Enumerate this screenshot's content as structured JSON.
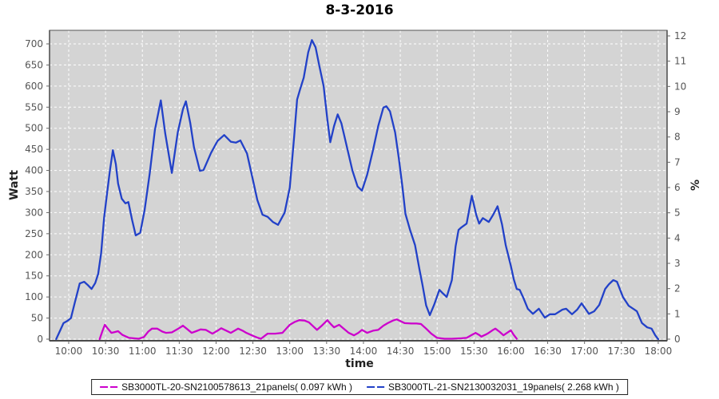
{
  "title": "8-3-2016",
  "axes": {
    "x": {
      "label": "time"
    },
    "left": {
      "label": "Watt"
    },
    "right": {
      "label": "%"
    }
  },
  "legend": {
    "items": [
      {
        "label": "SB3000TL-20-SN2100578613_21panels( 0.097 kWh )",
        "color": "#cc00cc"
      },
      {
        "label": "SB3000TL-21-SN2130032031_19panels( 2.268 kWh )",
        "color": "#2241c8"
      }
    ]
  },
  "colors": {
    "plot_bg": "#d4d4d4",
    "grid": "#ffffff",
    "plot_border": "#6e6e6e",
    "axis_line": "#4a4a4a",
    "tick_mark": "#666666",
    "tick_text": "#555555",
    "axis_title_text": "#222222"
  },
  "chart_data": {
    "type": "line",
    "title": "8-3-2016",
    "xlabel": "time",
    "ylabel_left": "Watt",
    "ylabel_right": "%",
    "grid": true,
    "legend_position": "bottom",
    "x_range_hours": [
      9.74,
      18.12
    ],
    "y_left_range": [
      0,
      700
    ],
    "y_right_range": [
      0,
      12
    ],
    "x_ticks": [
      {
        "v": 10,
        "label": "10:00"
      },
      {
        "v": 10.5,
        "label": "10:30"
      },
      {
        "v": 11,
        "label": "11:00"
      },
      {
        "v": 11.5,
        "label": "11:30"
      },
      {
        "v": 12,
        "label": "12:00"
      },
      {
        "v": 12.5,
        "label": "12:30"
      },
      {
        "v": 13,
        "label": "13:00"
      },
      {
        "v": 13.5,
        "label": "13:30"
      },
      {
        "v": 14,
        "label": "14:00"
      },
      {
        "v": 14.5,
        "label": "14:30"
      },
      {
        "v": 15,
        "label": "15:00"
      },
      {
        "v": 15.5,
        "label": "15:30"
      },
      {
        "v": 16,
        "label": "16:00"
      },
      {
        "v": 16.5,
        "label": "16:30"
      },
      {
        "v": 17,
        "label": "17:00"
      },
      {
        "v": 17.5,
        "label": "17:30"
      },
      {
        "v": 18,
        "label": "18:00"
      }
    ],
    "y_left_ticks": [
      0,
      50,
      100,
      150,
      200,
      250,
      300,
      350,
      400,
      450,
      500,
      550,
      600,
      650,
      700
    ],
    "y_right_ticks": [
      0,
      1,
      2,
      3,
      4,
      5,
      6,
      7,
      8,
      9,
      10,
      11,
      12
    ],
    "series": [
      {
        "name": "SB3000TL-20-SN2100578613_21panels( 0.097 kWh )",
        "color": "#cc00cc",
        "axis": "left",
        "points": [
          [
            10.42,
            0
          ],
          [
            10.46,
            20
          ],
          [
            10.49,
            34
          ],
          [
            10.53,
            25
          ],
          [
            10.58,
            15
          ],
          [
            10.63,
            17
          ],
          [
            10.67,
            19
          ],
          [
            10.73,
            10
          ],
          [
            10.82,
            3
          ],
          [
            10.95,
            1
          ],
          [
            11.02,
            5
          ],
          [
            11.08,
            18
          ],
          [
            11.13,
            25
          ],
          [
            11.2,
            25
          ],
          [
            11.27,
            18
          ],
          [
            11.32,
            15
          ],
          [
            11.4,
            16
          ],
          [
            11.48,
            24
          ],
          [
            11.55,
            32
          ],
          [
            11.6,
            25
          ],
          [
            11.67,
            15
          ],
          [
            11.73,
            19
          ],
          [
            11.79,
            23
          ],
          [
            11.86,
            22
          ],
          [
            11.95,
            13
          ],
          [
            12.02,
            20
          ],
          [
            12.07,
            26
          ],
          [
            12.14,
            20
          ],
          [
            12.2,
            15
          ],
          [
            12.26,
            21
          ],
          [
            12.3,
            25
          ],
          [
            12.36,
            20
          ],
          [
            12.41,
            15
          ],
          [
            12.5,
            8
          ],
          [
            12.57,
            3
          ],
          [
            12.61,
            1
          ],
          [
            12.66,
            8
          ],
          [
            12.7,
            13
          ],
          [
            12.8,
            13
          ],
          [
            12.9,
            15
          ],
          [
            13.0,
            34
          ],
          [
            13.07,
            41
          ],
          [
            13.13,
            45
          ],
          [
            13.2,
            44
          ],
          [
            13.26,
            40
          ],
          [
            13.32,
            30
          ],
          [
            13.37,
            22
          ],
          [
            13.44,
            33
          ],
          [
            13.51,
            45
          ],
          [
            13.56,
            35
          ],
          [
            13.6,
            28
          ],
          [
            13.67,
            34
          ],
          [
            13.73,
            25
          ],
          [
            13.8,
            15
          ],
          [
            13.87,
            9
          ],
          [
            13.93,
            15
          ],
          [
            13.98,
            22
          ],
          [
            14.05,
            15
          ],
          [
            14.13,
            20
          ],
          [
            14.2,
            22
          ],
          [
            14.27,
            32
          ],
          [
            14.33,
            38
          ],
          [
            14.4,
            44
          ],
          [
            14.45,
            47
          ],
          [
            14.5,
            43
          ],
          [
            14.56,
            38
          ],
          [
            14.65,
            37
          ],
          [
            14.72,
            37
          ],
          [
            14.78,
            36
          ],
          [
            14.85,
            25
          ],
          [
            14.92,
            13
          ],
          [
            15.0,
            3
          ],
          [
            15.1,
            1
          ],
          [
            15.2,
            1
          ],
          [
            15.33,
            2
          ],
          [
            15.4,
            3
          ],
          [
            15.46,
            9
          ],
          [
            15.52,
            15
          ],
          [
            15.57,
            10
          ],
          [
            15.6,
            6
          ],
          [
            15.66,
            11
          ],
          [
            15.7,
            15
          ],
          [
            15.75,
            21
          ],
          [
            15.79,
            25
          ],
          [
            15.85,
            17
          ],
          [
            15.9,
            9
          ],
          [
            15.95,
            15
          ],
          [
            16.0,
            21
          ],
          [
            16.04,
            10
          ],
          [
            16.08,
            1
          ]
        ]
      },
      {
        "name": "SB3000TL-21-SN2130032031_19panels( 2.268 kWh )",
        "color": "#2241c8",
        "axis": "left",
        "points": [
          [
            9.83,
            0
          ],
          [
            9.88,
            19
          ],
          [
            9.93,
            38
          ],
          [
            9.98,
            43
          ],
          [
            10.03,
            50
          ],
          [
            10.08,
            85
          ],
          [
            10.15,
            132
          ],
          [
            10.21,
            136
          ],
          [
            10.26,
            128
          ],
          [
            10.31,
            119
          ],
          [
            10.36,
            133
          ],
          [
            10.4,
            155
          ],
          [
            10.44,
            204
          ],
          [
            10.48,
            288
          ],
          [
            10.52,
            344
          ],
          [
            10.56,
            400
          ],
          [
            10.6,
            448
          ],
          [
            10.64,
            415
          ],
          [
            10.67,
            369
          ],
          [
            10.72,
            333
          ],
          [
            10.77,
            322
          ],
          [
            10.81,
            325
          ],
          [
            10.86,
            283
          ],
          [
            10.91,
            246
          ],
          [
            10.97,
            252
          ],
          [
            11.03,
            306
          ],
          [
            11.1,
            394
          ],
          [
            11.17,
            496
          ],
          [
            11.25,
            566
          ],
          [
            11.31,
            488
          ],
          [
            11.4,
            394
          ],
          [
            11.48,
            490
          ],
          [
            11.55,
            545
          ],
          [
            11.59,
            564
          ],
          [
            11.65,
            512
          ],
          [
            11.7,
            455
          ],
          [
            11.78,
            399
          ],
          [
            11.83,
            401
          ],
          [
            11.93,
            441
          ],
          [
            12.02,
            470
          ],
          [
            12.11,
            484
          ],
          [
            12.2,
            468
          ],
          [
            12.27,
            466
          ],
          [
            12.33,
            471
          ],
          [
            12.42,
            440
          ],
          [
            12.49,
            385
          ],
          [
            12.56,
            330
          ],
          [
            12.63,
            295
          ],
          [
            12.7,
            290
          ],
          [
            12.77,
            278
          ],
          [
            12.84,
            271
          ],
          [
            12.93,
            300
          ],
          [
            13.0,
            359
          ],
          [
            13.06,
            480
          ],
          [
            13.1,
            568
          ],
          [
            13.14,
            592
          ],
          [
            13.19,
            620
          ],
          [
            13.25,
            680
          ],
          [
            13.3,
            709
          ],
          [
            13.35,
            692
          ],
          [
            13.4,
            649
          ],
          [
            13.46,
            600
          ],
          [
            13.51,
            520
          ],
          [
            13.55,
            467
          ],
          [
            13.6,
            505
          ],
          [
            13.65,
            533
          ],
          [
            13.7,
            512
          ],
          [
            13.77,
            460
          ],
          [
            13.85,
            400
          ],
          [
            13.92,
            362
          ],
          [
            13.98,
            352
          ],
          [
            14.05,
            390
          ],
          [
            14.13,
            448
          ],
          [
            14.2,
            505
          ],
          [
            14.27,
            549
          ],
          [
            14.31,
            552
          ],
          [
            14.36,
            540
          ],
          [
            14.43,
            490
          ],
          [
            14.48,
            429
          ],
          [
            14.53,
            360
          ],
          [
            14.57,
            297
          ],
          [
            14.63,
            260
          ],
          [
            14.7,
            223
          ],
          [
            14.76,
            165
          ],
          [
            14.8,
            129
          ],
          [
            14.85,
            80
          ],
          [
            14.9,
            57
          ],
          [
            14.96,
            82
          ],
          [
            15.03,
            117
          ],
          [
            15.08,
            108
          ],
          [
            15.13,
            100
          ],
          [
            15.2,
            140
          ],
          [
            15.25,
            220
          ],
          [
            15.29,
            259
          ],
          [
            15.33,
            265
          ],
          [
            15.4,
            274
          ],
          [
            15.47,
            340
          ],
          [
            15.53,
            295
          ],
          [
            15.57,
            274
          ],
          [
            15.62,
            287
          ],
          [
            15.7,
            278
          ],
          [
            15.76,
            295
          ],
          [
            15.82,
            315
          ],
          [
            15.88,
            272
          ],
          [
            15.93,
            223
          ],
          [
            16.0,
            174
          ],
          [
            16.04,
            142
          ],
          [
            16.08,
            119
          ],
          [
            16.12,
            117
          ],
          [
            16.17,
            98
          ],
          [
            16.23,
            72
          ],
          [
            16.3,
            60
          ],
          [
            16.38,
            72
          ],
          [
            16.46,
            51
          ],
          [
            16.53,
            59
          ],
          [
            16.6,
            59
          ],
          [
            16.7,
            70
          ],
          [
            16.75,
            72
          ],
          [
            16.83,
            59
          ],
          [
            16.9,
            70
          ],
          [
            16.96,
            85
          ],
          [
            17.06,
            60
          ],
          [
            17.13,
            66
          ],
          [
            17.2,
            81
          ],
          [
            17.28,
            119
          ],
          [
            17.33,
            130
          ],
          [
            17.39,
            140
          ],
          [
            17.44,
            136
          ],
          [
            17.52,
            100
          ],
          [
            17.6,
            79
          ],
          [
            17.66,
            72
          ],
          [
            17.71,
            66
          ],
          [
            17.78,
            38
          ],
          [
            17.85,
            28
          ],
          [
            17.91,
            25
          ],
          [
            17.96,
            9
          ],
          [
            18.0,
            0
          ]
        ]
      }
    ]
  }
}
